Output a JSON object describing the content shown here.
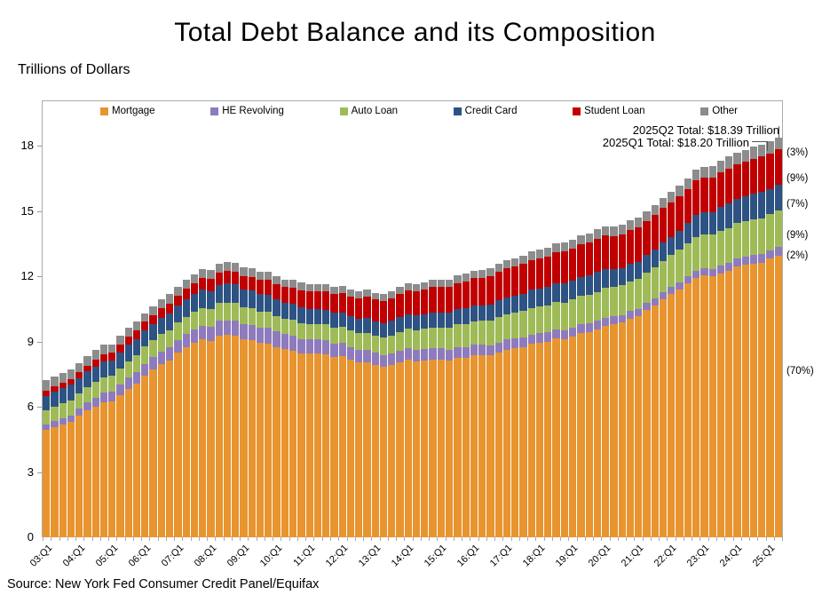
{
  "title": "Total Debt Balance and its Composition",
  "y_axis_title": "Trillions of Dollars",
  "source": "Source: New York Fed Consumer Credit Panel/Equifax",
  "annotations": {
    "q2_total": "2025Q2 Total: $18.39 Trillion",
    "q1_total": "2025Q1 Total: $18.20 Trillion"
  },
  "share_labels": [
    "(3%)",
    "(9%)",
    "(7%)",
    "(9%)",
    "(2%)",
    "(70%)"
  ],
  "colors": {
    "mortgage": "#E8942F",
    "he_revolving": "#8E7BBE",
    "auto_loan": "#9FBB58",
    "credit_card": "#2D5384",
    "student_loan": "#C00000",
    "other": "#8C8C8C",
    "axis": "#ababab",
    "annotation_line": "#555555"
  },
  "chart_data": {
    "type": "bar",
    "stacked": true,
    "title": "Total Debt Balance and its Composition",
    "ylabel": "Trillions of Dollars",
    "ylim": [
      0,
      20
    ],
    "y_ticks": [
      0,
      3,
      6,
      9,
      12,
      15,
      18
    ],
    "legend_position": "top",
    "grid": false,
    "categories": [
      "03:Q1",
      "03:Q2",
      "03:Q3",
      "03:Q4",
      "04:Q1",
      "04:Q2",
      "04:Q3",
      "04:Q4",
      "05:Q1",
      "05:Q2",
      "05:Q3",
      "05:Q4",
      "06:Q1",
      "06:Q2",
      "06:Q3",
      "06:Q4",
      "07:Q1",
      "07:Q2",
      "07:Q3",
      "07:Q4",
      "08:Q1",
      "08:Q2",
      "08:Q3",
      "08:Q4",
      "09:Q1",
      "09:Q2",
      "09:Q3",
      "09:Q4",
      "10:Q1",
      "10:Q2",
      "10:Q3",
      "10:Q4",
      "11:Q1",
      "11:Q2",
      "11:Q3",
      "11:Q4",
      "12:Q1",
      "12:Q2",
      "12:Q3",
      "12:Q4",
      "13:Q1",
      "13:Q2",
      "13:Q3",
      "13:Q4",
      "14:Q1",
      "14:Q2",
      "14:Q3",
      "14:Q4",
      "15:Q1",
      "15:Q2",
      "15:Q3",
      "15:Q4",
      "16:Q1",
      "16:Q2",
      "16:Q3",
      "16:Q4",
      "17:Q1",
      "17:Q2",
      "17:Q3",
      "17:Q4",
      "18:Q1",
      "18:Q2",
      "18:Q3",
      "18:Q4",
      "19:Q1",
      "19:Q2",
      "19:Q3",
      "19:Q4",
      "20:Q1",
      "20:Q2",
      "20:Q3",
      "20:Q4",
      "21:Q1",
      "21:Q2",
      "21:Q3",
      "21:Q4",
      "22:Q1",
      "22:Q2",
      "22:Q3",
      "22:Q4",
      "23:Q1",
      "23:Q2",
      "23:Q3",
      "23:Q4",
      "24:Q1",
      "24:Q2",
      "24:Q3",
      "24:Q4",
      "25:Q1",
      "25:Q2"
    ],
    "x_tick_labels": [
      "03:Q1",
      "04:Q1",
      "05:Q1",
      "06:Q1",
      "07:Q1",
      "08:Q1",
      "09:Q1",
      "10:Q1",
      "11:Q1",
      "12:Q1",
      "13:Q1",
      "14:Q1",
      "15:Q1",
      "16:Q1",
      "17:Q1",
      "18:Q1",
      "19:Q1",
      "20:Q1",
      "21:Q1",
      "22:Q1",
      "23:Q1",
      "24:Q1",
      "25:Q1"
    ],
    "series": [
      {
        "name": "Mortgage",
        "color": "#E8942F",
        "share_label": "(70%)",
        "values": [
          4.94,
          5.08,
          5.18,
          5.31,
          5.6,
          5.84,
          6.02,
          6.2,
          6.23,
          6.52,
          6.8,
          7.07,
          7.42,
          7.7,
          7.96,
          8.14,
          8.5,
          8.74,
          8.93,
          9.1,
          9.03,
          9.27,
          9.29,
          9.26,
          9.09,
          9.06,
          8.94,
          8.91,
          8.75,
          8.64,
          8.59,
          8.45,
          8.45,
          8.44,
          8.4,
          8.27,
          8.32,
          8.15,
          8.03,
          8.06,
          7.93,
          7.84,
          7.9,
          8.05,
          8.17,
          8.1,
          8.13,
          8.17,
          8.17,
          8.12,
          8.26,
          8.25,
          8.37,
          8.36,
          8.35,
          8.48,
          8.63,
          8.69,
          8.74,
          8.88,
          8.94,
          9.0,
          9.14,
          9.12,
          9.24,
          9.41,
          9.44,
          9.56,
          9.71,
          9.78,
          9.86,
          10.04,
          10.16,
          10.44,
          10.67,
          10.93,
          11.18,
          11.39,
          11.67,
          11.92,
          12.04,
          12.01,
          12.14,
          12.25,
          12.44,
          12.52,
          12.59,
          12.61,
          12.8,
          12.94
        ]
      },
      {
        "name": "HE Revolving",
        "color": "#8E7BBE",
        "share_label": "(2%)",
        "values": [
          0.24,
          0.26,
          0.28,
          0.3,
          0.33,
          0.36,
          0.4,
          0.44,
          0.47,
          0.5,
          0.53,
          0.54,
          0.56,
          0.57,
          0.57,
          0.58,
          0.58,
          0.59,
          0.61,
          0.63,
          0.65,
          0.68,
          0.69,
          0.71,
          0.71,
          0.71,
          0.71,
          0.71,
          0.71,
          0.7,
          0.69,
          0.67,
          0.66,
          0.66,
          0.65,
          0.63,
          0.61,
          0.59,
          0.57,
          0.56,
          0.55,
          0.54,
          0.54,
          0.53,
          0.53,
          0.52,
          0.51,
          0.51,
          0.51,
          0.5,
          0.49,
          0.49,
          0.49,
          0.48,
          0.47,
          0.47,
          0.46,
          0.45,
          0.45,
          0.44,
          0.44,
          0.43,
          0.42,
          0.41,
          0.41,
          0.4,
          0.4,
          0.39,
          0.39,
          0.38,
          0.36,
          0.35,
          0.35,
          0.32,
          0.32,
          0.32,
          0.32,
          0.32,
          0.32,
          0.34,
          0.34,
          0.34,
          0.35,
          0.36,
          0.37,
          0.38,
          0.39,
          0.4,
          0.4,
          0.41
        ]
      },
      {
        "name": "Auto Loan",
        "color": "#9FBB58",
        "share_label": "(9%)",
        "values": [
          0.64,
          0.66,
          0.69,
          0.7,
          0.7,
          0.71,
          0.71,
          0.72,
          0.72,
          0.74,
          0.77,
          0.78,
          0.78,
          0.79,
          0.8,
          0.81,
          0.8,
          0.81,
          0.82,
          0.82,
          0.81,
          0.81,
          0.81,
          0.79,
          0.76,
          0.75,
          0.73,
          0.73,
          0.71,
          0.7,
          0.71,
          0.71,
          0.7,
          0.71,
          0.73,
          0.73,
          0.73,
          0.75,
          0.77,
          0.78,
          0.79,
          0.81,
          0.84,
          0.86,
          0.88,
          0.91,
          0.94,
          0.96,
          0.97,
          1.0,
          1.03,
          1.06,
          1.07,
          1.1,
          1.14,
          1.16,
          1.17,
          1.19,
          1.21,
          1.22,
          1.23,
          1.24,
          1.27,
          1.27,
          1.28,
          1.3,
          1.32,
          1.33,
          1.35,
          1.34,
          1.36,
          1.37,
          1.38,
          1.42,
          1.44,
          1.46,
          1.47,
          1.5,
          1.52,
          1.55,
          1.56,
          1.58,
          1.6,
          1.61,
          1.62,
          1.63,
          1.64,
          1.66,
          1.64,
          1.66
        ]
      },
      {
        "name": "Credit Card",
        "color": "#2D5384",
        "share_label": "(7%)",
        "values": [
          0.69,
          0.69,
          0.69,
          0.7,
          0.7,
          0.71,
          0.71,
          0.72,
          0.71,
          0.72,
          0.74,
          0.73,
          0.74,
          0.74,
          0.75,
          0.77,
          0.77,
          0.79,
          0.81,
          0.84,
          0.84,
          0.85,
          0.87,
          0.87,
          0.84,
          0.83,
          0.81,
          0.81,
          0.76,
          0.74,
          0.73,
          0.73,
          0.7,
          0.69,
          0.69,
          0.7,
          0.68,
          0.67,
          0.67,
          0.68,
          0.66,
          0.67,
          0.67,
          0.68,
          0.66,
          0.67,
          0.68,
          0.7,
          0.68,
          0.7,
          0.71,
          0.73,
          0.71,
          0.73,
          0.75,
          0.78,
          0.76,
          0.78,
          0.81,
          0.83,
          0.82,
          0.83,
          0.84,
          0.87,
          0.85,
          0.87,
          0.88,
          0.93,
          0.89,
          0.82,
          0.81,
          0.82,
          0.77,
          0.79,
          0.8,
          0.86,
          0.84,
          0.89,
          0.93,
          0.99,
          0.99,
          1.03,
          1.08,
          1.13,
          1.12,
          1.14,
          1.17,
          1.21,
          1.18,
          1.21
        ]
      },
      {
        "name": "Student Loan",
        "color": "#C00000",
        "share_label": "(9%)",
        "values": [
          0.24,
          0.24,
          0.25,
          0.25,
          0.26,
          0.26,
          0.33,
          0.35,
          0.36,
          0.38,
          0.39,
          0.39,
          0.41,
          0.42,
          0.44,
          0.45,
          0.47,
          0.48,
          0.5,
          0.52,
          0.54,
          0.55,
          0.57,
          0.58,
          0.6,
          0.61,
          0.64,
          0.67,
          0.71,
          0.73,
          0.76,
          0.79,
          0.8,
          0.82,
          0.85,
          0.87,
          0.9,
          0.91,
          0.94,
          0.97,
          0.99,
          1.0,
          1.03,
          1.08,
          1.11,
          1.12,
          1.13,
          1.16,
          1.19,
          1.19,
          1.2,
          1.23,
          1.26,
          1.26,
          1.28,
          1.31,
          1.34,
          1.34,
          1.36,
          1.38,
          1.41,
          1.41,
          1.44,
          1.46,
          1.49,
          1.48,
          1.5,
          1.51,
          1.54,
          1.54,
          1.55,
          1.56,
          1.58,
          1.57,
          1.58,
          1.58,
          1.59,
          1.59,
          1.57,
          1.6,
          1.6,
          1.57,
          1.6,
          1.6,
          1.6,
          1.59,
          1.61,
          1.62,
          1.63,
          1.64
        ]
      },
      {
        "name": "Other",
        "color": "#8C8C8C",
        "share_label": "(3%)",
        "values": [
          0.48,
          0.47,
          0.47,
          0.45,
          0.43,
          0.44,
          0.43,
          0.43,
          0.38,
          0.4,
          0.41,
          0.41,
          0.39,
          0.4,
          0.42,
          0.43,
          0.41,
          0.42,
          0.42,
          0.43,
          0.41,
          0.41,
          0.42,
          0.42,
          0.4,
          0.39,
          0.38,
          0.37,
          0.36,
          0.35,
          0.36,
          0.36,
          0.34,
          0.33,
          0.33,
          0.33,
          0.33,
          0.32,
          0.31,
          0.32,
          0.31,
          0.31,
          0.31,
          0.31,
          0.31,
          0.31,
          0.32,
          0.33,
          0.33,
          0.33,
          0.34,
          0.35,
          0.35,
          0.35,
          0.36,
          0.37,
          0.37,
          0.37,
          0.38,
          0.39,
          0.39,
          0.39,
          0.4,
          0.41,
          0.4,
          0.41,
          0.42,
          0.43,
          0.42,
          0.42,
          0.42,
          0.44,
          0.44,
          0.44,
          0.44,
          0.46,
          0.46,
          0.47,
          0.49,
          0.51,
          0.51,
          0.53,
          0.53,
          0.55,
          0.54,
          0.54,
          0.55,
          0.55,
          0.55,
          0.53
        ]
      }
    ]
  }
}
